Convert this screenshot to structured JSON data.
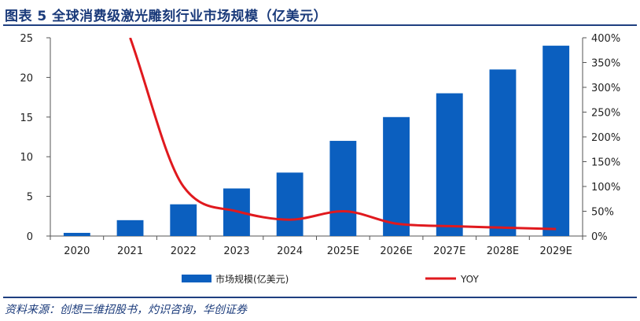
{
  "title": "图表 5   全球消费级激光雕刻行业市场规模（亿美元）",
  "source": "资料来源：创想三维招股书，灼识咨询，华创证券",
  "colors": {
    "bar": "#0b5fbf",
    "line": "#e0191e",
    "title": "#1a3a7a"
  },
  "chart_data": {
    "type": "bar",
    "categories": [
      "2020",
      "2021",
      "2022",
      "2023",
      "2024",
      "2025E",
      "2026E",
      "2027E",
      "2028E",
      "2029E"
    ],
    "series": [
      {
        "name": "市场规模(亿美元)",
        "type": "bar",
        "axis": "left",
        "values": [
          0.4,
          2,
          4,
          6,
          8,
          12,
          15,
          18,
          21,
          24
        ]
      },
      {
        "name": "YOY",
        "type": "line",
        "axis": "right",
        "values": [
          null,
          400,
          100,
          50,
          33,
          50,
          25,
          20,
          17,
          14
        ]
      }
    ],
    "ylim": [
      0,
      25
    ],
    "yticks": [
      0,
      5,
      10,
      15,
      20,
      25
    ],
    "y2lim": [
      0,
      400
    ],
    "y2ticks": [
      "0%",
      "50%",
      "100%",
      "150%",
      "200%",
      "250%",
      "300%",
      "350%",
      "400%"
    ],
    "grid": false,
    "legend": "bottom"
  }
}
